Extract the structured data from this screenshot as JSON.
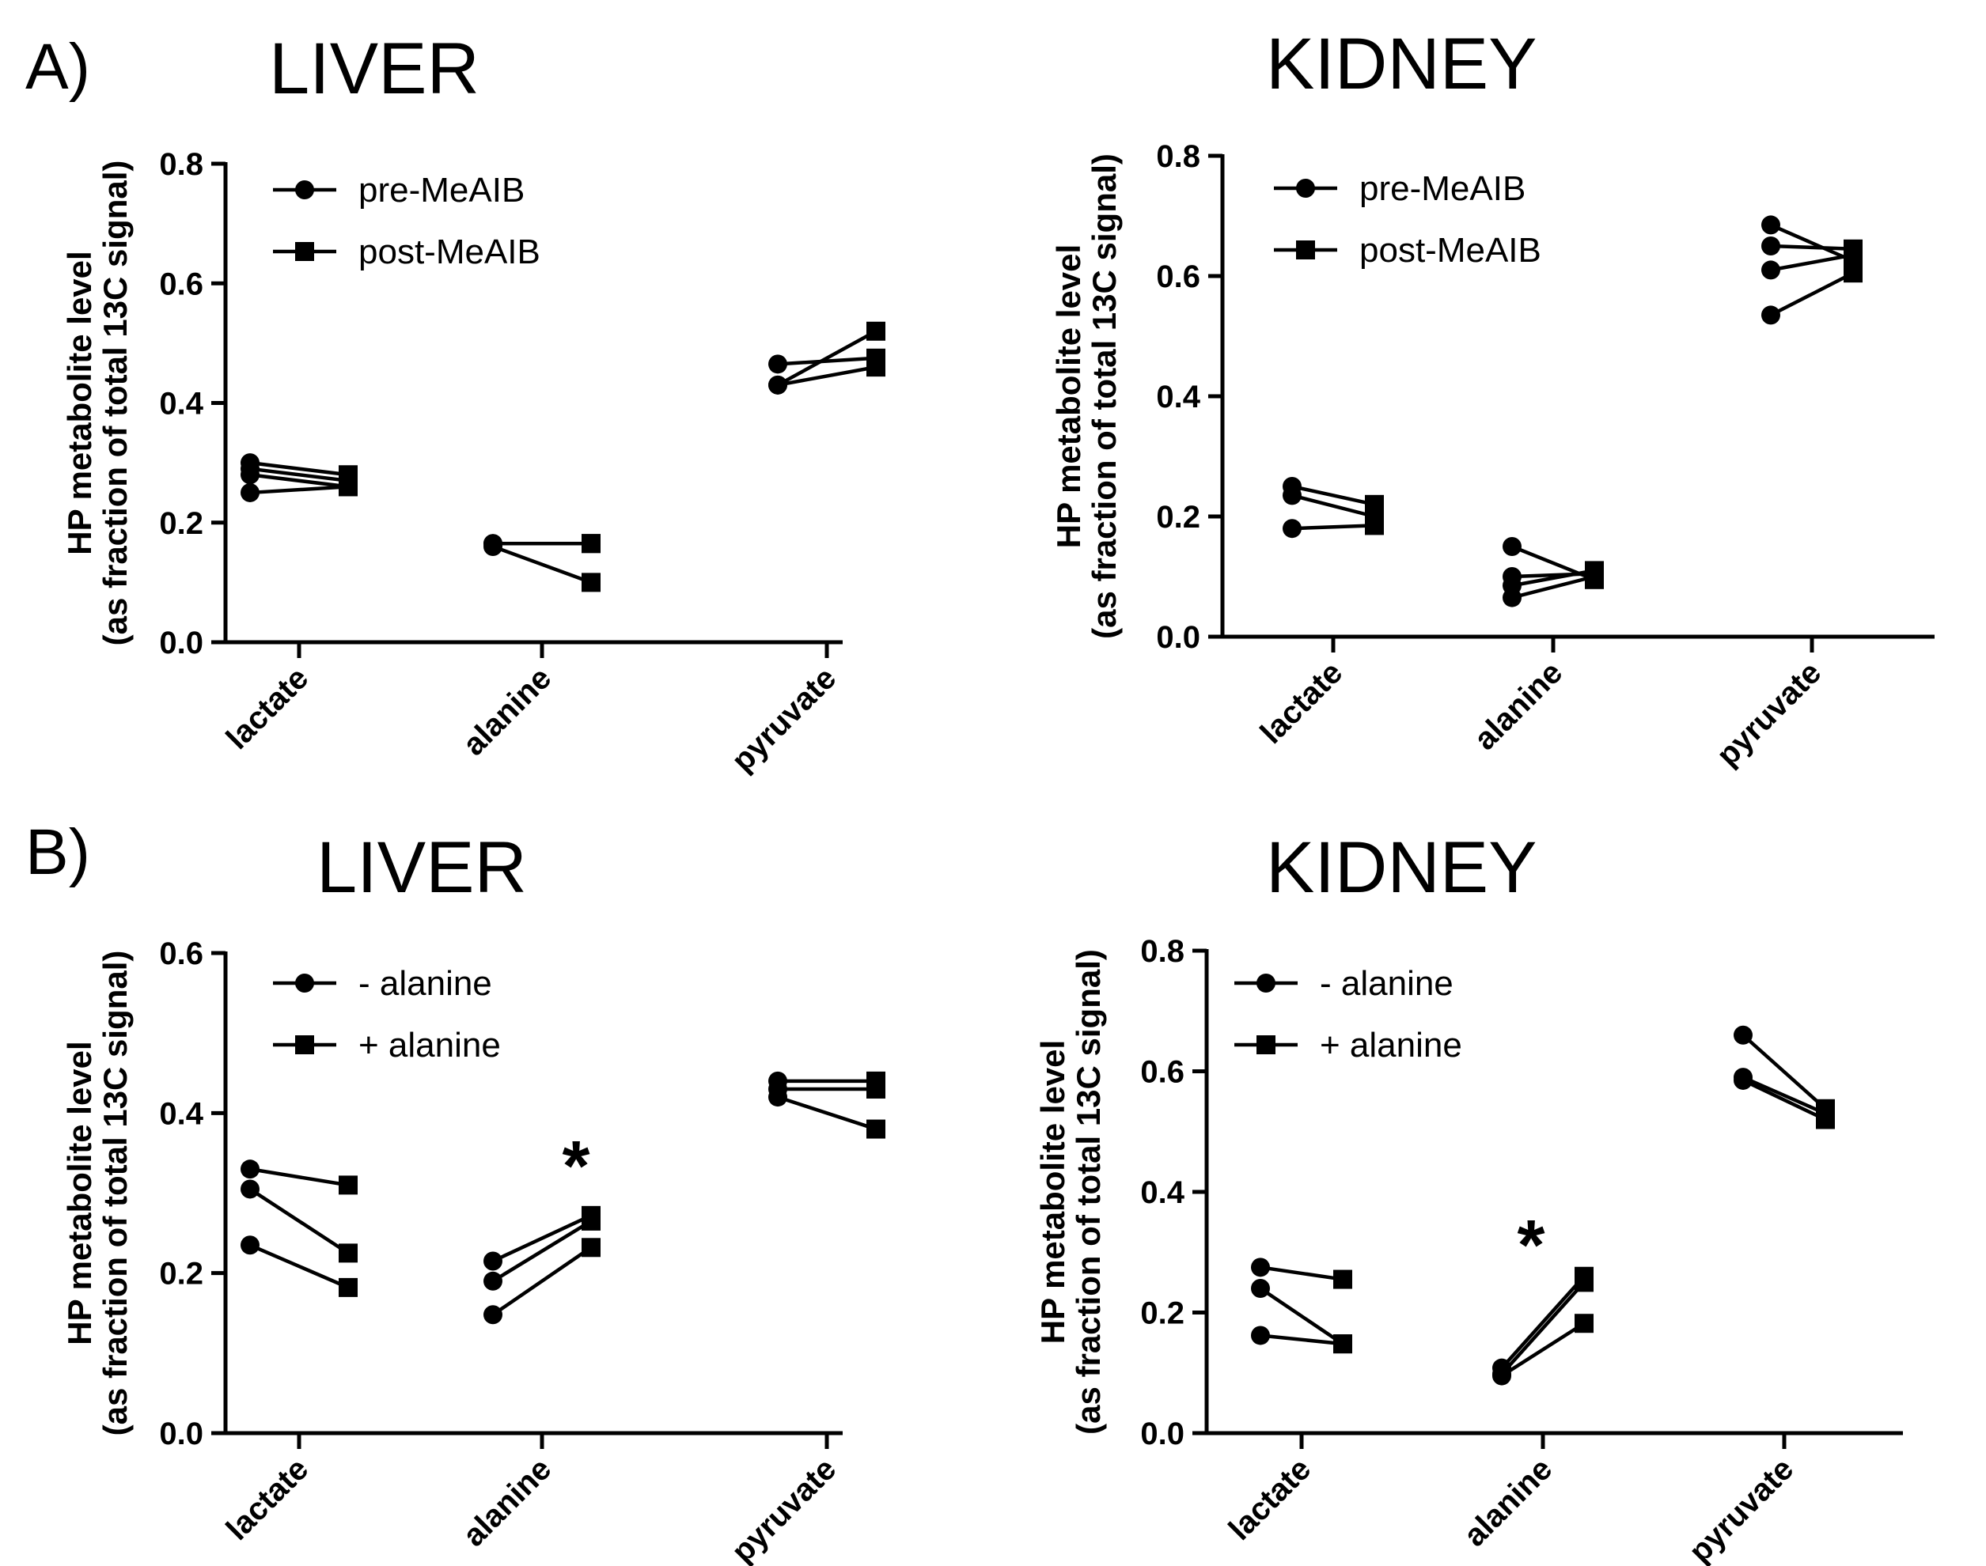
{
  "panels": {
    "a": {
      "label": "A)"
    },
    "b": {
      "label": "B)"
    }
  },
  "axis_title": {
    "line1": "HP metabolite level",
    "line2": "(as fraction of total 13C signal)"
  },
  "chart_data": [
    {
      "type": "line",
      "title": "LIVER",
      "panel": "A",
      "categories": [
        "lactate",
        "alanine",
        "pyruvate"
      ],
      "legend": {
        "pre": "pre-MeAIB",
        "post": "post-MeAIB"
      },
      "ylim": [
        0,
        0.8
      ],
      "yticks": [
        "0.0",
        "0.2",
        "0.4",
        "0.6",
        "0.8"
      ],
      "ylabel": "HP metabolite level (as fraction of total 13C signal)",
      "pairs": [
        [
          [
            0.3,
            0.28
          ],
          [
            0.29,
            0.27
          ],
          [
            0.28,
            0.26
          ],
          [
            0.25,
            0.26
          ]
        ],
        [
          [
            0.165,
            0.165
          ],
          [
            0.16,
            0.1
          ],
          [
            0.165,
            0.165
          ]
        ],
        [
          [
            0.465,
            0.475
          ],
          [
            0.43,
            0.52
          ],
          [
            0.43,
            0.46
          ]
        ]
      ],
      "sig": ""
    },
    {
      "type": "line",
      "title": "KIDNEY",
      "panel": "A",
      "categories": [
        "lactate",
        "alanine",
        "pyruvate"
      ],
      "legend": {
        "pre": "pre-MeAIB",
        "post": "post-MeAIB"
      },
      "ylim": [
        0,
        0.8
      ],
      "yticks": [
        "0.0",
        "0.2",
        "0.4",
        "0.6",
        "0.8"
      ],
      "ylabel": "HP metabolite level (as fraction of total 13C signal)",
      "pairs": [
        [
          [
            0.25,
            0.22
          ],
          [
            0.235,
            0.2
          ],
          [
            0.18,
            0.185
          ]
        ],
        [
          [
            0.15,
            0.095
          ],
          [
            0.1,
            0.105
          ],
          [
            0.085,
            0.11
          ],
          [
            0.065,
            0.1
          ]
        ],
        [
          [
            0.685,
            0.625
          ],
          [
            0.65,
            0.645
          ],
          [
            0.61,
            0.635
          ],
          [
            0.535,
            0.605
          ]
        ]
      ],
      "sig": ""
    },
    {
      "type": "line",
      "title": "LIVER",
      "panel": "B",
      "categories": [
        "lactate",
        "alanine",
        "pyruvate"
      ],
      "legend": {
        "pre": "- alanine",
        "post": "+ alanine"
      },
      "ylim": [
        0,
        0.6
      ],
      "yticks": [
        "0.0",
        "0.2",
        "0.4",
        "0.6"
      ],
      "ylabel": "HP metabolite level (as fraction of total 13C signal)",
      "pairs": [
        [
          [
            0.33,
            0.31
          ],
          [
            0.305,
            0.225
          ],
          [
            0.235,
            0.182
          ]
        ],
        [
          [
            0.215,
            0.272
          ],
          [
            0.19,
            0.265
          ],
          [
            0.148,
            0.232
          ]
        ],
        [
          [
            0.44,
            0.44
          ],
          [
            0.43,
            0.43
          ],
          [
            0.42,
            0.38
          ]
        ]
      ],
      "sig": "*",
      "sig_category": "alanine"
    },
    {
      "type": "line",
      "title": "KIDNEY",
      "panel": "B",
      "categories": [
        "lactate",
        "alanine",
        "pyruvate"
      ],
      "legend": {
        "pre": "- alanine",
        "post": "+ alanine"
      },
      "ylim": [
        0,
        0.8
      ],
      "yticks": [
        "0.0",
        "0.2",
        "0.4",
        "0.6",
        "0.8"
      ],
      "ylabel": "HP metabolite level (as fraction of total 13C signal)",
      "pairs": [
        [
          [
            0.275,
            0.255
          ],
          [
            0.24,
            0.148
          ],
          [
            0.162,
            0.148
          ]
        ],
        [
          [
            0.108,
            0.26
          ],
          [
            0.098,
            0.25
          ],
          [
            0.095,
            0.182
          ]
        ],
        [
          [
            0.66,
            0.538
          ],
          [
            0.59,
            0.53
          ],
          [
            0.585,
            0.52
          ]
        ]
      ],
      "sig": "*",
      "sig_category": "alanine"
    }
  ]
}
